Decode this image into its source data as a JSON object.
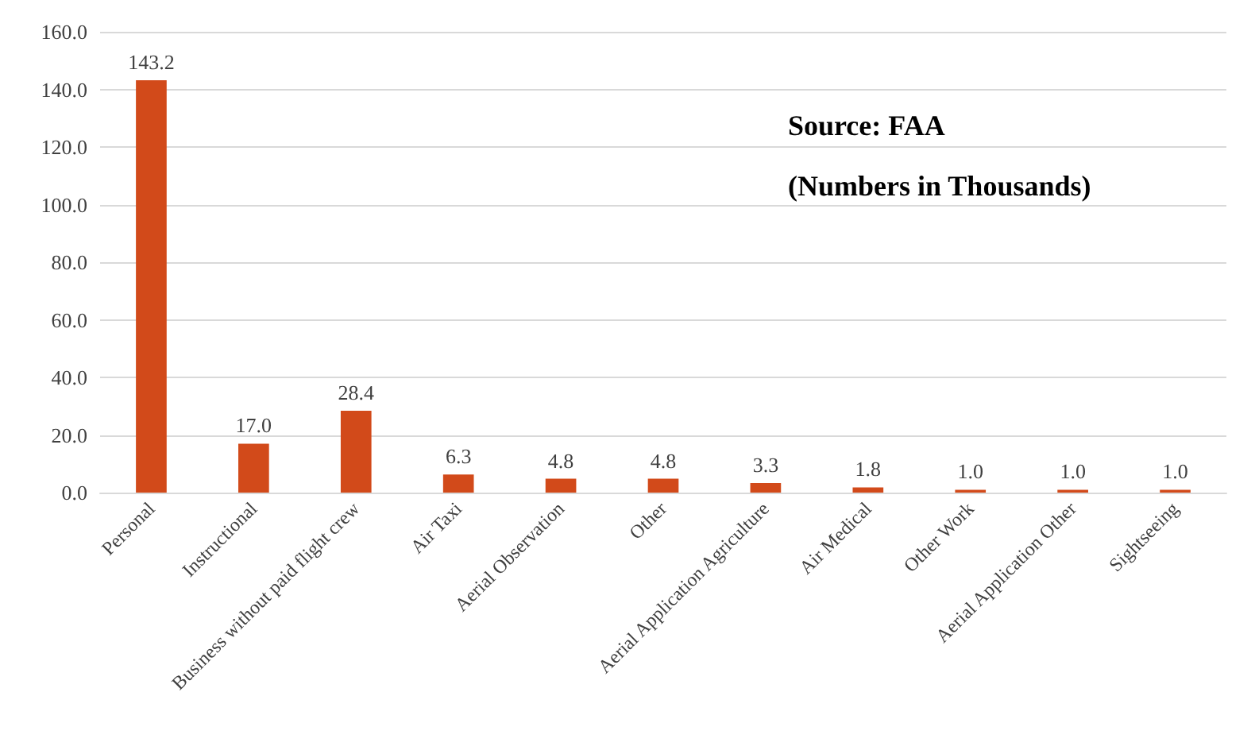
{
  "chart_data": {
    "type": "bar",
    "categories": [
      "Personal",
      "Instructional",
      "Business without paid flight crew",
      "Air Taxi",
      "Aerial Observation",
      "Other",
      "Aerial Application Agriculture",
      "Air Medical",
      "Other Work",
      "Aerial Application Other",
      "Sightseeing"
    ],
    "values": [
      143.2,
      17.0,
      28.4,
      6.3,
      4.8,
      4.8,
      3.3,
      1.8,
      1.0,
      1.0,
      1.0
    ],
    "value_labels": [
      "143.2",
      "17.0",
      "28.4",
      "6.3",
      "4.8",
      "4.8",
      "3.3",
      "1.8",
      "1.0",
      "1.0",
      "1.0"
    ],
    "color": "#d24a1a",
    "ylim": [
      0,
      160
    ],
    "yticks": [
      {
        "value": 0,
        "label": "0.0"
      },
      {
        "value": 20,
        "label": "20.0"
      },
      {
        "value": 40,
        "label": "40.0"
      },
      {
        "value": 60,
        "label": "60.0"
      },
      {
        "value": 80,
        "label": "80.0"
      },
      {
        "value": 100,
        "label": "100.0"
      },
      {
        "value": 120,
        "label": "120.0"
      },
      {
        "value": 140,
        "label": "140.0"
      },
      {
        "value": 160,
        "label": "160.0"
      }
    ],
    "grid": "y",
    "annotations": [
      "Source: FAA",
      "(Numbers in Thousands)"
    ]
  }
}
